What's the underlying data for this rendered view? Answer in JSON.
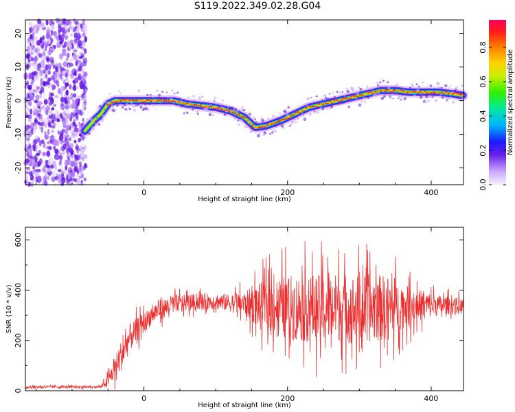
{
  "title": "S119.2022.349.02.28.G04",
  "colors": {
    "snr_line": "#ee2e2e",
    "noise_purple": "#7a2cf0",
    "ridge_core": "#ff2a2a"
  },
  "colorbar": {
    "label": "Normalized spectral amplitude",
    "ticks": [
      "0.0",
      "0.2",
      "0.4",
      "0.6",
      "0.8"
    ],
    "tick_values": [
      0.0,
      0.2,
      0.4,
      0.6,
      0.8
    ],
    "range": [
      0,
      0.96
    ]
  },
  "chart_data": [
    {
      "type": "heatmap",
      "title": "",
      "xlabel": "Height of straight line (km)",
      "ylabel": "Frequency (Hz)",
      "xlim": [
        -165,
        445
      ],
      "ylim": [
        -25,
        24
      ],
      "xticks": [
        0,
        200,
        400
      ],
      "xtick_labels": [
        "0",
        "200",
        "400"
      ],
      "yticks": [
        -20,
        -10,
        0,
        10,
        20
      ],
      "ytick_labels": [
        "-20",
        "-10",
        "0",
        "10",
        "20"
      ],
      "ridge": {
        "x": [
          -82,
          -70,
          -60,
          -50,
          -40,
          -20,
          0,
          20,
          40,
          60,
          80,
          100,
          120,
          140,
          155,
          170,
          190,
          210,
          230,
          250,
          270,
          290,
          310,
          330,
          350,
          370,
          390,
          410,
          430,
          445
        ],
        "y": [
          -9,
          -6,
          -4,
          -1,
          0,
          0,
          0,
          0,
          0,
          -1,
          -1.5,
          -2,
          -3,
          -5,
          -8,
          -7.5,
          -6,
          -4,
          -2,
          -1,
          0,
          1,
          2,
          3,
          3,
          2.5,
          2.5,
          2.5,
          2,
          1.5
        ]
      },
      "noise_band_x": [
        -165,
        -80
      ]
    },
    {
      "type": "line",
      "title": "",
      "xlabel": "Height of straight line (km)",
      "ylabel": "SNR (10 * v/v)",
      "xlim": [
        -165,
        445
      ],
      "ylim": [
        0,
        650
      ],
      "xticks": [
        0,
        200,
        400
      ],
      "xtick_labels": [
        "0",
        "200",
        "400"
      ],
      "yticks": [
        0,
        200,
        400,
        600
      ],
      "ytick_labels": [
        "0",
        "200",
        "400",
        "600"
      ],
      "envelope": {
        "x": [
          -165,
          -60,
          -50,
          -40,
          -30,
          -20,
          -10,
          0,
          10,
          20,
          30,
          40,
          60,
          80,
          100,
          120,
          140,
          160,
          180,
          200,
          220,
          240,
          260,
          280,
          300,
          320,
          340,
          360,
          380,
          400,
          420,
          445
        ],
        "mean": [
          15,
          15,
          40,
          90,
          150,
          210,
          240,
          270,
          300,
          320,
          330,
          345,
          350,
          355,
          355,
          350,
          345,
          340,
          340,
          330,
          330,
          325,
          330,
          330,
          325,
          330,
          330,
          335,
          340,
          340,
          340,
          335
        ],
        "spread": [
          6,
          6,
          30,
          60,
          80,
          70,
          60,
          50,
          50,
          50,
          50,
          45,
          40,
          40,
          40,
          45,
          60,
          110,
          140,
          160,
          170,
          170,
          170,
          170,
          170,
          170,
          160,
          110,
          80,
          60,
          45,
          40
        ]
      }
    }
  ]
}
